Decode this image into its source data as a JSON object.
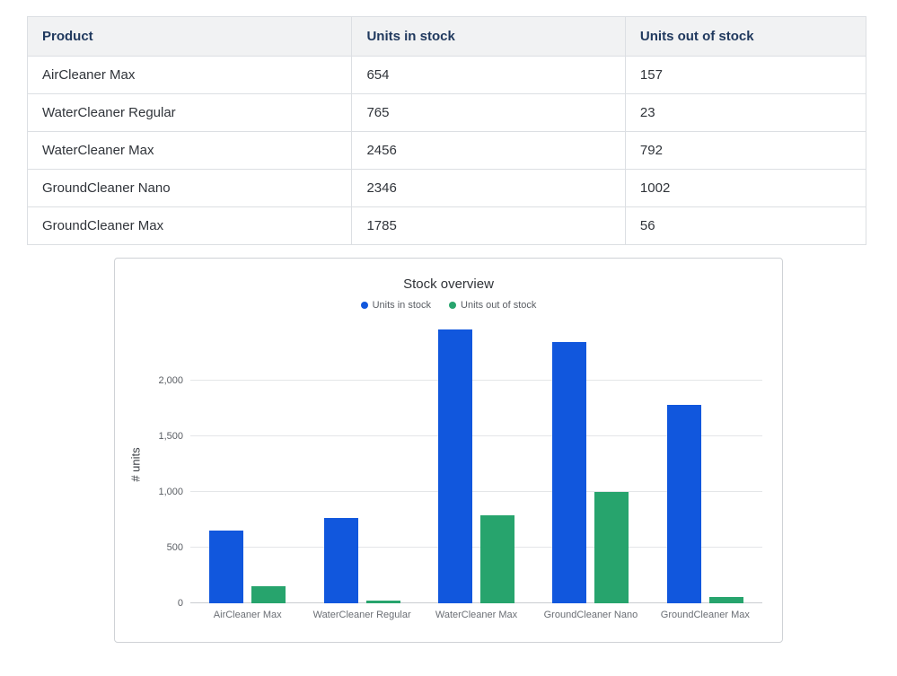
{
  "table": {
    "headers": [
      "Product",
      "Units in stock",
      "Units out of stock"
    ],
    "rows": [
      [
        "AirCleaner Max",
        "654",
        "157"
      ],
      [
        "WaterCleaner Regular",
        "765",
        "23"
      ],
      [
        "WaterCleaner Max",
        "2456",
        "792"
      ],
      [
        "GroundCleaner Nano",
        "2346",
        "1002"
      ],
      [
        "GroundCleaner Max",
        "1785",
        "56"
      ]
    ]
  },
  "chart_data": {
    "type": "bar",
    "title": "Stock overview",
    "categories": [
      "AirCleaner Max",
      "WaterCleaner Regular",
      "WaterCleaner Max",
      "GroundCleaner Nano",
      "GroundCleaner Max"
    ],
    "series": [
      {
        "name": "Units in stock",
        "color": "#1157dd",
        "values": [
          654,
          765,
          2456,
          2346,
          1785
        ]
      },
      {
        "name": "Units out of stock",
        "color": "#27a46d",
        "values": [
          157,
          23,
          792,
          1002,
          56
        ]
      }
    ],
    "ylabel": "# units",
    "ylim": [
      0,
      2500
    ],
    "yticks": [
      0,
      500,
      1000,
      1500,
      2000
    ],
    "ytick_labels": [
      "0",
      "500",
      "1,000",
      "1,500",
      "2,000"
    ],
    "grid": true,
    "legend_position": "top"
  }
}
